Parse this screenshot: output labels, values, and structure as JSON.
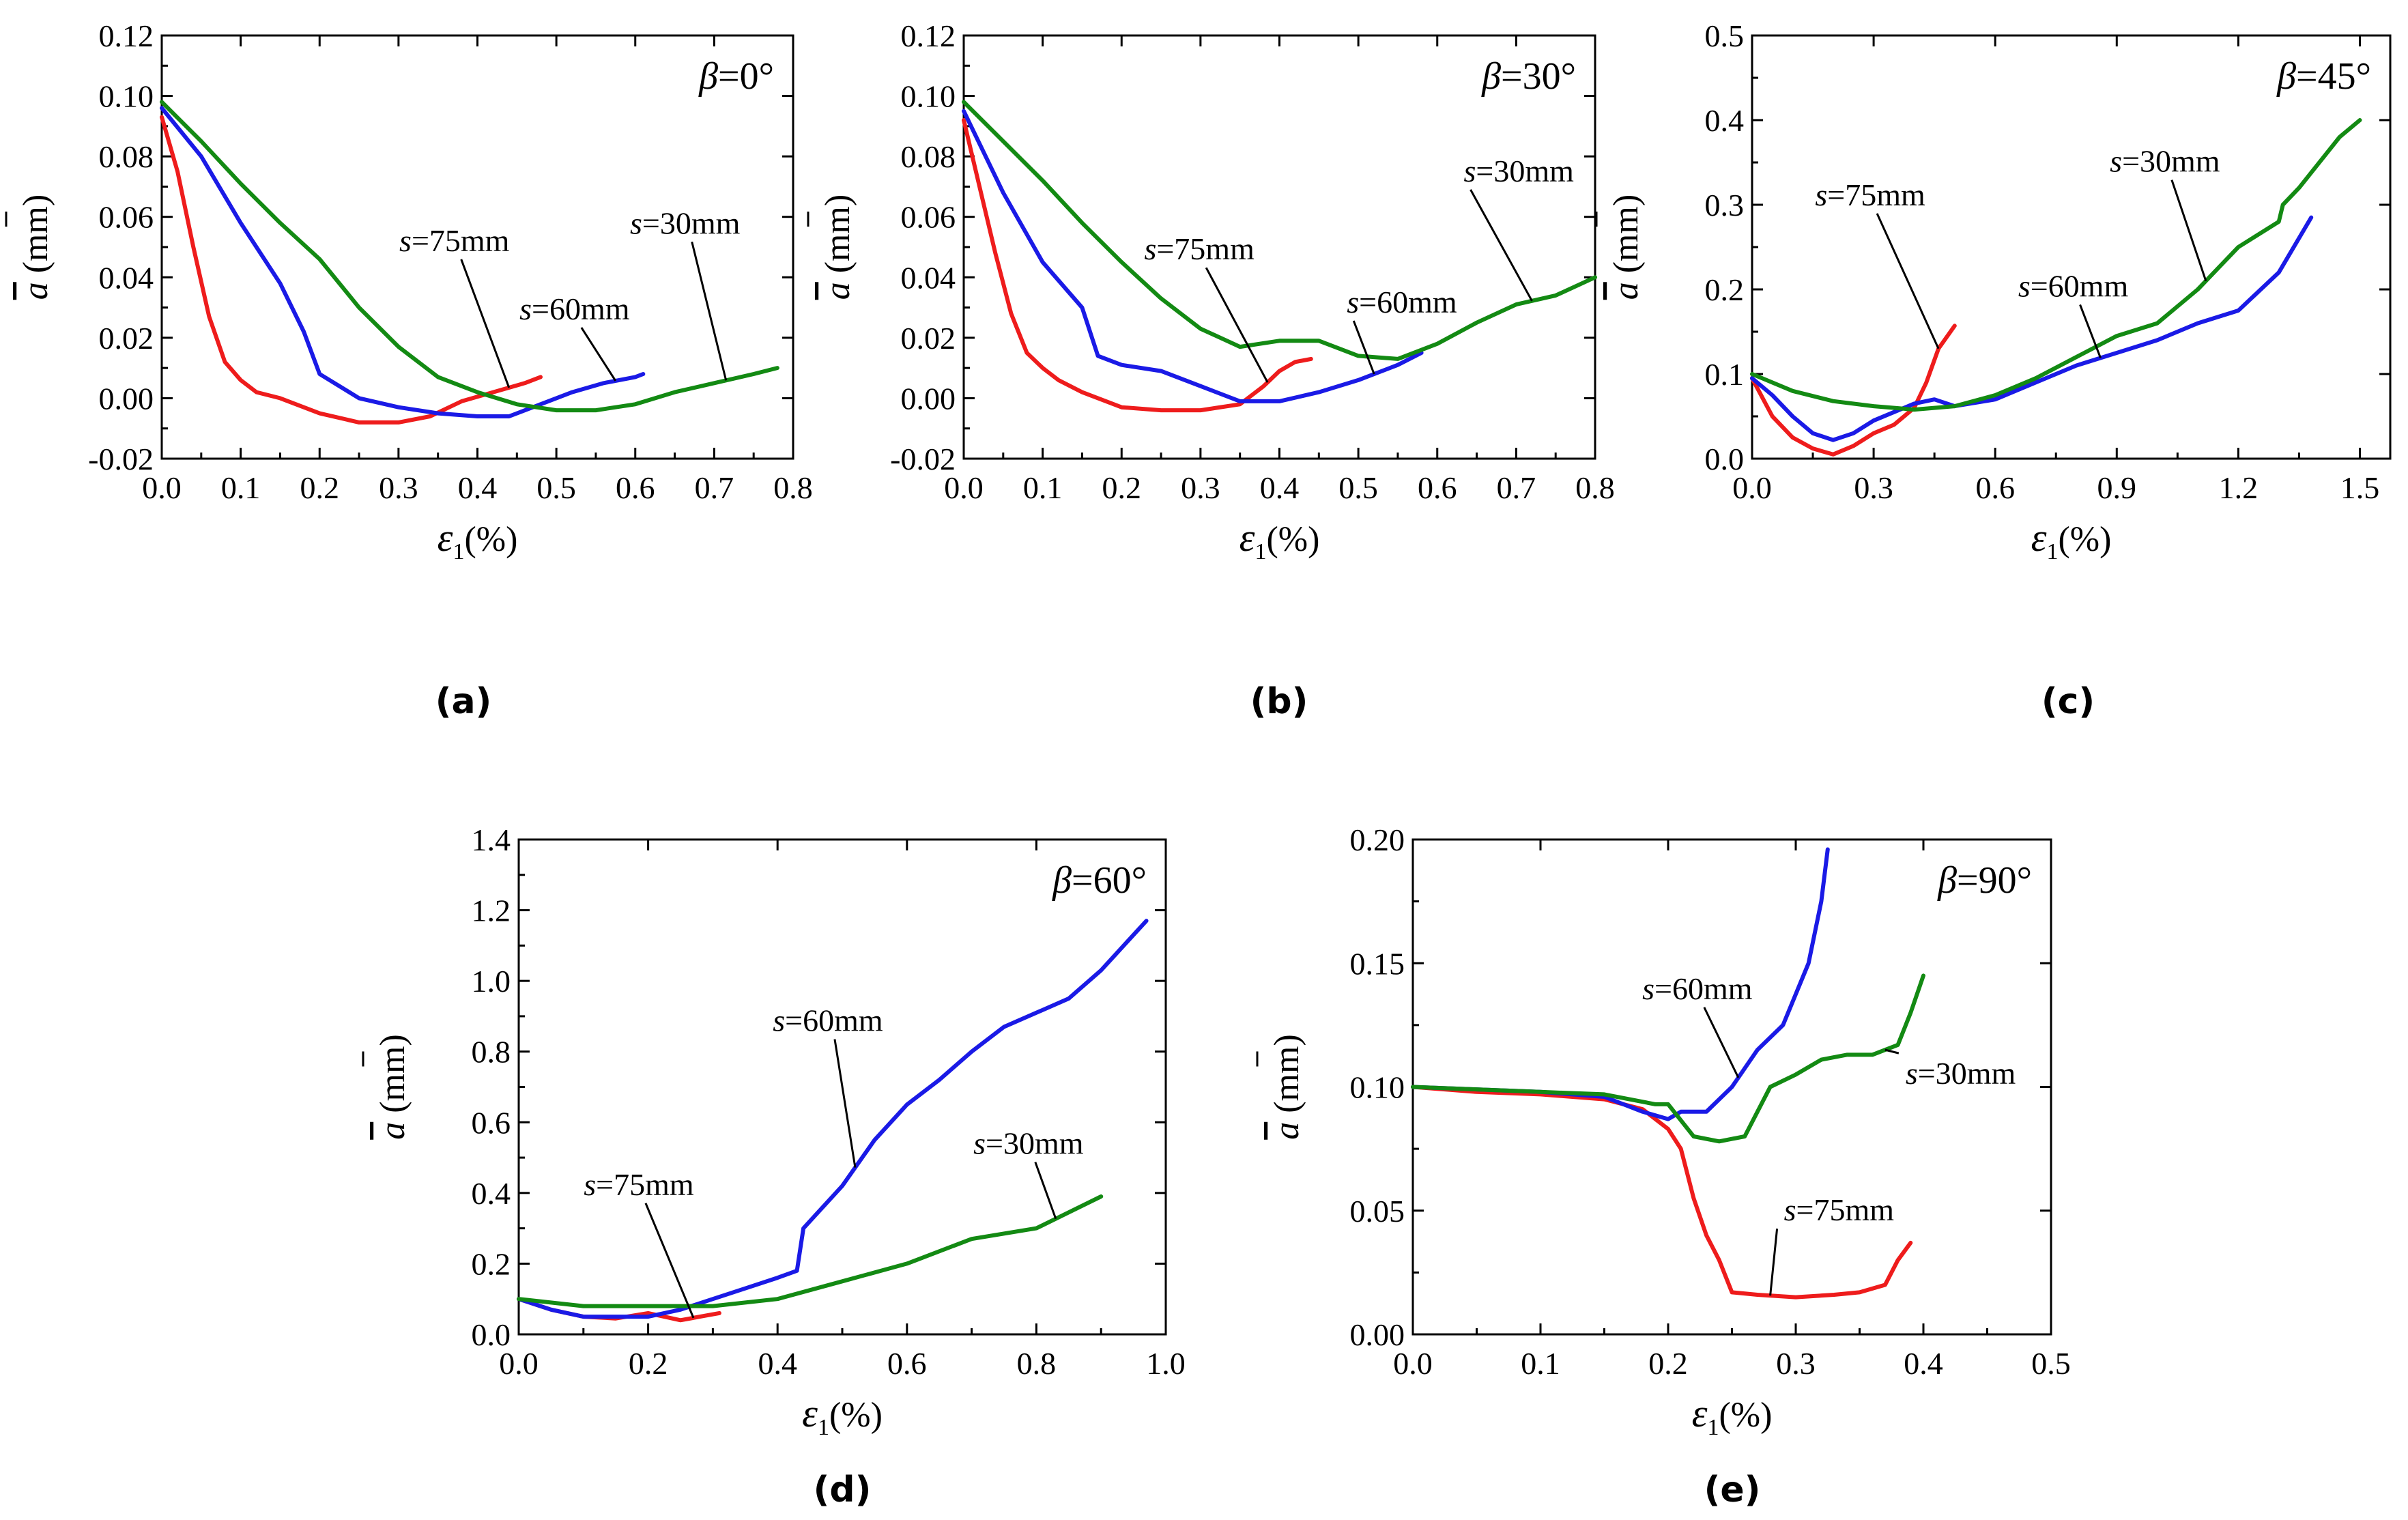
{
  "chart_data": [
    {
      "type": "line",
      "panel_label": "(a)",
      "annotation": "β=0°",
      "xlabel_parts": [
        "ε",
        "1",
        "(%)"
      ],
      "ylabel_parts": [
        "a",
        " (mm)"
      ],
      "xlim": [
        0,
        0.8
      ],
      "ylim": [
        -0.02,
        0.12
      ],
      "xticks": [
        "0.0",
        "0.1",
        "0.2",
        "0.3",
        "0.4",
        "0.5",
        "0.6",
        "0.7",
        "0.8"
      ],
      "yticks": [
        "-0.02",
        "0.00",
        "0.02",
        "0.04",
        "0.06",
        "0.08",
        "0.10",
        "0.12"
      ],
      "series": [
        {
          "label": "s=75mm",
          "color": "#ee1c1c",
          "x": [
            0,
            0.02,
            0.04,
            0.06,
            0.08,
            0.1,
            0.12,
            0.15,
            0.2,
            0.25,
            0.3,
            0.34,
            0.38,
            0.42,
            0.46,
            0.48
          ],
          "y": [
            0.093,
            0.075,
            0.05,
            0.027,
            0.012,
            0.006,
            0.002,
            0.0,
            -0.005,
            -0.008,
            -0.008,
            -0.006,
            -0.001,
            0.002,
            0.005,
            0.007
          ]
        },
        {
          "label": "s=60mm",
          "color": "#1a1ae6",
          "x": [
            0,
            0.05,
            0.1,
            0.15,
            0.18,
            0.2,
            0.25,
            0.3,
            0.35,
            0.4,
            0.44,
            0.48,
            0.52,
            0.56,
            0.6,
            0.61
          ],
          "y": [
            0.096,
            0.08,
            0.058,
            0.038,
            0.022,
            0.008,
            0.0,
            -0.003,
            -0.005,
            -0.006,
            -0.006,
            -0.002,
            0.002,
            0.005,
            0.007,
            0.008
          ]
        },
        {
          "label": "s=30mm",
          "color": "#138a13",
          "x": [
            0,
            0.05,
            0.1,
            0.15,
            0.2,
            0.25,
            0.3,
            0.35,
            0.4,
            0.45,
            0.5,
            0.55,
            0.6,
            0.65,
            0.7,
            0.75,
            0.78
          ],
          "y": [
            0.098,
            0.085,
            0.071,
            0.058,
            0.046,
            0.03,
            0.017,
            0.007,
            0.002,
            -0.002,
            -0.004,
            -0.004,
            -0.002,
            0.002,
            0.005,
            0.008,
            0.01
          ]
        }
      ],
      "annotations": [
        {
          "text": "s=75mm",
          "series": 0,
          "x": 0.44
        },
        {
          "text": "s=60mm",
          "series": 1,
          "x": 0.575
        },
        {
          "text": "s=30mm",
          "series": 2,
          "x": 0.715
        }
      ]
    },
    {
      "type": "line",
      "panel_label": "(b)",
      "annotation": "β=30°",
      "xlabel_parts": [
        "ε",
        "1",
        "(%)"
      ],
      "ylabel_parts": [
        "a",
        " (mm)"
      ],
      "xlim": [
        0,
        0.8
      ],
      "ylim": [
        -0.02,
        0.12
      ],
      "xticks": [
        "0.0",
        "0.1",
        "0.2",
        "0.3",
        "0.4",
        "0.5",
        "0.6",
        "0.7",
        "0.8"
      ],
      "yticks": [
        "-0.02",
        "0.00",
        "0.02",
        "0.04",
        "0.06",
        "0.08",
        "0.10",
        "0.12"
      ],
      "series": [
        {
          "label": "s=75mm",
          "color": "#ee1c1c",
          "x": [
            0,
            0.02,
            0.04,
            0.06,
            0.08,
            0.1,
            0.12,
            0.15,
            0.2,
            0.25,
            0.3,
            0.35,
            0.38,
            0.4,
            0.42,
            0.44
          ],
          "y": [
            0.092,
            0.07,
            0.048,
            0.028,
            0.015,
            0.01,
            0.006,
            0.002,
            -0.003,
            -0.004,
            -0.004,
            -0.002,
            0.004,
            0.009,
            0.012,
            0.013
          ]
        },
        {
          "label": "s=60mm",
          "color": "#1a1ae6",
          "x": [
            0,
            0.05,
            0.1,
            0.15,
            0.17,
            0.2,
            0.25,
            0.3,
            0.35,
            0.4,
            0.45,
            0.5,
            0.55,
            0.58
          ],
          "y": [
            0.095,
            0.068,
            0.045,
            0.03,
            0.014,
            0.011,
            0.009,
            0.004,
            -0.001,
            -0.001,
            0.002,
            0.006,
            0.011,
            0.015
          ]
        },
        {
          "label": "s=30mm",
          "color": "#138a13",
          "x": [
            0,
            0.05,
            0.1,
            0.15,
            0.2,
            0.25,
            0.3,
            0.35,
            0.4,
            0.45,
            0.5,
            0.55,
            0.6,
            0.65,
            0.7,
            0.75,
            0.8
          ],
          "y": [
            0.098,
            0.085,
            0.072,
            0.058,
            0.045,
            0.033,
            0.023,
            0.017,
            0.019,
            0.019,
            0.014,
            0.013,
            0.018,
            0.025,
            0.031,
            0.034,
            0.04
          ]
        }
      ],
      "annotations": [
        {
          "text": "s=75mm",
          "series": 0,
          "x": 0.385
        },
        {
          "text": "s=60mm",
          "series": 1,
          "x": 0.52
        },
        {
          "text": "s=30mm",
          "series": 2,
          "x": 0.72
        }
      ]
    },
    {
      "type": "line",
      "panel_label": "(c)",
      "annotation": "β=45°",
      "xlabel_parts": [
        "ε",
        "1",
        "(%)"
      ],
      "ylabel_parts": [
        "a",
        " (mm)"
      ],
      "xlim": [
        0,
        1.575
      ],
      "ylim": [
        0,
        0.5
      ],
      "xticks": [
        "0.0",
        "0.3",
        "0.6",
        "0.9",
        "1.2",
        "1.5"
      ],
      "xtick_values": [
        0,
        0.3,
        0.6,
        0.9,
        1.2,
        1.5
      ],
      "yticks": [
        "0.0",
        "0.1",
        "0.2",
        "0.3",
        "0.4",
        "0.5"
      ],
      "series": [
        {
          "label": "s=75mm",
          "color": "#ee1c1c",
          "x": [
            0,
            0.05,
            0.1,
            0.15,
            0.2,
            0.25,
            0.3,
            0.35,
            0.4,
            0.43,
            0.46,
            0.5
          ],
          "y": [
            0.095,
            0.05,
            0.025,
            0.012,
            0.005,
            0.015,
            0.03,
            0.04,
            0.06,
            0.09,
            0.13,
            0.157
          ]
        },
        {
          "label": "s=60mm",
          "color": "#1a1ae6",
          "x": [
            0,
            0.05,
            0.1,
            0.15,
            0.2,
            0.25,
            0.3,
            0.35,
            0.4,
            0.45,
            0.5,
            0.6,
            0.7,
            0.8,
            0.9,
            1.0,
            1.1,
            1.2,
            1.3,
            1.38
          ],
          "y": [
            0.095,
            0.075,
            0.05,
            0.03,
            0.022,
            0.03,
            0.045,
            0.055,
            0.065,
            0.07,
            0.062,
            0.07,
            0.09,
            0.11,
            0.125,
            0.14,
            0.16,
            0.175,
            0.22,
            0.285
          ]
        },
        {
          "label": "s=30mm",
          "color": "#138a13",
          "x": [
            0,
            0.1,
            0.2,
            0.3,
            0.4,
            0.5,
            0.6,
            0.7,
            0.8,
            0.9,
            1.0,
            1.1,
            1.2,
            1.3,
            1.31,
            1.35,
            1.4,
            1.45,
            1.5
          ],
          "y": [
            0.1,
            0.08,
            0.068,
            0.062,
            0.058,
            0.062,
            0.075,
            0.095,
            0.12,
            0.145,
            0.16,
            0.2,
            0.25,
            0.28,
            0.3,
            0.32,
            0.35,
            0.38,
            0.4
          ]
        }
      ],
      "annotations": [
        {
          "text": "s=75mm",
          "series": 0,
          "x": 0.46
        },
        {
          "text": "s=60mm",
          "series": 1,
          "x": 0.86
        },
        {
          "text": "s=30mm",
          "series": 2,
          "x": 1.12
        }
      ]
    },
    {
      "type": "line",
      "panel_label": "(d)",
      "annotation": "β=60°",
      "xlabel_parts": [
        "ε",
        "1",
        "(%)"
      ],
      "ylabel_parts": [
        "a",
        " (mm)"
      ],
      "xlim": [
        0,
        1.0
      ],
      "ylim": [
        0,
        1.4
      ],
      "xticks": [
        "0.0",
        "0.2",
        "0.4",
        "0.6",
        "0.8",
        "1.0"
      ],
      "xtick_values": [
        0,
        0.2,
        0.4,
        0.6,
        0.8,
        1.0
      ],
      "yticks": [
        "0.0",
        "0.2",
        "0.4",
        "0.6",
        "0.8",
        "1.0",
        "1.2",
        "1.4"
      ],
      "series": [
        {
          "label": "s=75mm",
          "color": "#ee1c1c",
          "x": [
            0,
            0.05,
            0.1,
            0.15,
            0.2,
            0.25,
            0.28,
            0.31
          ],
          "y": [
            0.1,
            0.07,
            0.05,
            0.045,
            0.06,
            0.04,
            0.05,
            0.06
          ]
        },
        {
          "label": "s=60mm",
          "color": "#1a1ae6",
          "x": [
            0,
            0.05,
            0.1,
            0.15,
            0.2,
            0.25,
            0.3,
            0.35,
            0.4,
            0.43,
            0.44,
            0.5,
            0.55,
            0.6,
            0.65,
            0.7,
            0.75,
            0.8,
            0.85,
            0.9,
            0.97
          ],
          "y": [
            0.1,
            0.07,
            0.05,
            0.05,
            0.05,
            0.07,
            0.1,
            0.13,
            0.16,
            0.18,
            0.3,
            0.42,
            0.55,
            0.65,
            0.72,
            0.8,
            0.87,
            0.91,
            0.95,
            1.03,
            1.17
          ]
        },
        {
          "label": "s=30mm",
          "color": "#138a13",
          "x": [
            0,
            0.1,
            0.2,
            0.3,
            0.4,
            0.5,
            0.6,
            0.7,
            0.8,
            0.9
          ],
          "y": [
            0.1,
            0.08,
            0.08,
            0.08,
            0.1,
            0.15,
            0.2,
            0.27,
            0.3,
            0.39
          ]
        }
      ],
      "annotations": [
        {
          "text": "s=75mm",
          "series": 0,
          "x": 0.27
        },
        {
          "text": "s=60mm",
          "series": 1,
          "x": 0.52
        },
        {
          "text": "s=30mm",
          "series": 2,
          "x": 0.83
        }
      ]
    },
    {
      "type": "line",
      "panel_label": "(e)",
      "annotation": "β=90°",
      "xlabel_parts": [
        "ε",
        "1",
        "(%)"
      ],
      "ylabel_parts": [
        "a",
        " (mm)"
      ],
      "xlim": [
        0,
        0.5
      ],
      "ylim": [
        0,
        0.2
      ],
      "xticks": [
        "0.0",
        "0.1",
        "0.2",
        "0.3",
        "0.4",
        "0.5"
      ],
      "xtick_values": [
        0,
        0.1,
        0.2,
        0.3,
        0.4,
        0.5
      ],
      "yticks": [
        "0.00",
        "0.05",
        "0.10",
        "0.15",
        "0.20"
      ],
      "series": [
        {
          "label": "s=75mm",
          "color": "#ee1c1c",
          "x": [
            0,
            0.05,
            0.1,
            0.15,
            0.18,
            0.2,
            0.21,
            0.22,
            0.23,
            0.24,
            0.25,
            0.27,
            0.3,
            0.33,
            0.35,
            0.37,
            0.38,
            0.39
          ],
          "y": [
            0.1,
            0.098,
            0.097,
            0.095,
            0.091,
            0.083,
            0.075,
            0.055,
            0.04,
            0.03,
            0.017,
            0.016,
            0.015,
            0.016,
            0.017,
            0.02,
            0.03,
            0.037
          ]
        },
        {
          "label": "s=60mm",
          "color": "#1a1ae6",
          "x": [
            0,
            0.05,
            0.1,
            0.15,
            0.18,
            0.2,
            0.21,
            0.23,
            0.25,
            0.27,
            0.29,
            0.31,
            0.32,
            0.325
          ],
          "y": [
            0.1,
            0.099,
            0.098,
            0.096,
            0.09,
            0.087,
            0.09,
            0.09,
            0.1,
            0.115,
            0.125,
            0.15,
            0.175,
            0.196
          ]
        },
        {
          "label": "s=30mm",
          "color": "#138a13",
          "x": [
            0,
            0.05,
            0.1,
            0.15,
            0.19,
            0.2,
            0.22,
            0.24,
            0.26,
            0.27,
            0.28,
            0.3,
            0.32,
            0.34,
            0.36,
            0.38,
            0.39,
            0.4
          ],
          "y": [
            0.1,
            0.099,
            0.098,
            0.097,
            0.093,
            0.093,
            0.08,
            0.078,
            0.08,
            0.09,
            0.1,
            0.105,
            0.111,
            0.113,
            0.113,
            0.117,
            0.13,
            0.145
          ]
        }
      ],
      "annotations": [
        {
          "text": "s=75mm",
          "series": 0,
          "x": 0.28
        },
        {
          "text": "s=60mm",
          "series": 1,
          "x": 0.255
        },
        {
          "text": "s=30mm",
          "series": 2,
          "x": 0.37
        }
      ]
    }
  ]
}
